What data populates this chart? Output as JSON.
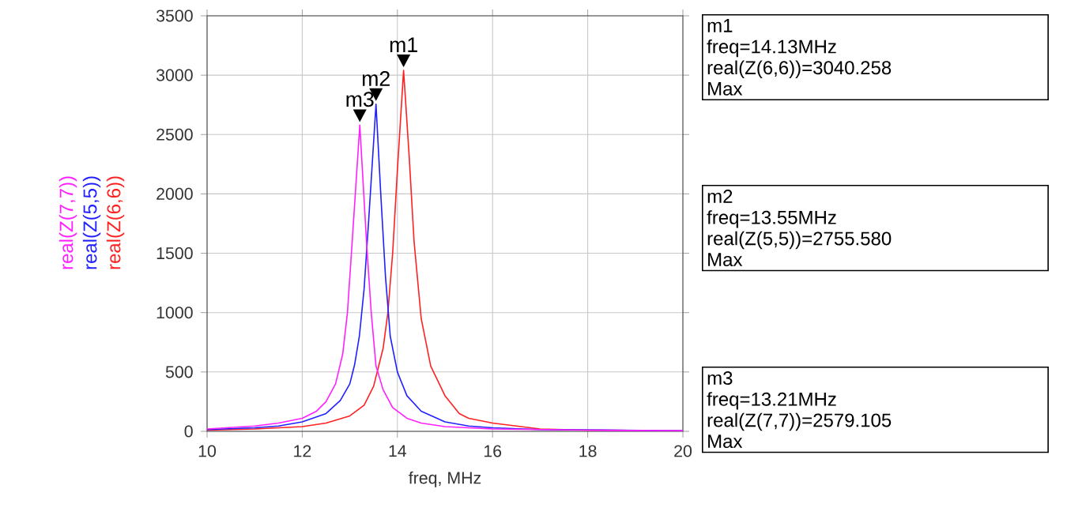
{
  "chart_data": {
    "type": "line",
    "xlabel": "freq, MHz",
    "xlim": [
      10,
      20
    ],
    "xticks": [
      10,
      12,
      14,
      16,
      18,
      20
    ],
    "ylim": [
      0,
      3500
    ],
    "yticks": [
      0,
      500,
      1000,
      1500,
      2000,
      2500,
      3000,
      3500
    ],
    "grid": true,
    "legend": "left",
    "marker": "none",
    "line_style": "solid",
    "series": [
      {
        "name": "real(Z(6,6))",
        "color": "#ff2020",
        "x": [
          10,
          11,
          12,
          12.5,
          13,
          13.3,
          13.5,
          13.7,
          13.8,
          13.9,
          14.0,
          14.13,
          14.25,
          14.35,
          14.5,
          14.7,
          15,
          15.3,
          15.5,
          16,
          17,
          18,
          20
        ],
        "values": [
          10,
          20,
          40,
          70,
          130,
          220,
          380,
          700,
          1000,
          1500,
          2200,
          3040.258,
          2300,
          1600,
          950,
          550,
          300,
          150,
          110,
          70,
          20,
          10,
          5
        ]
      },
      {
        "name": "real(Z(5,5))",
        "color": "#2020ff",
        "x": [
          10,
          11,
          11.5,
          12,
          12.5,
          12.8,
          13,
          13.1,
          13.2,
          13.3,
          13.4,
          13.55,
          13.65,
          13.75,
          13.85,
          14,
          14.2,
          14.5,
          15,
          15.5,
          16,
          17,
          20
        ],
        "values": [
          15,
          30,
          45,
          80,
          150,
          260,
          400,
          560,
          800,
          1200,
          1800,
          2755.58,
          2000,
          1300,
          800,
          500,
          300,
          170,
          80,
          45,
          30,
          15,
          5
        ]
      },
      {
        "name": "real(Z(7,7))",
        "color": "#ff20ff",
        "x": [
          10,
          11,
          11.5,
          12,
          12.3,
          12.5,
          12.7,
          12.85,
          12.95,
          13.05,
          13.21,
          13.35,
          13.45,
          13.55,
          13.7,
          13.9,
          14.2,
          14.5,
          15,
          16,
          18,
          20
        ],
        "values": [
          20,
          45,
          70,
          110,
          170,
          250,
          400,
          650,
          1000,
          1600,
          2579.105,
          1600,
          1000,
          550,
          350,
          200,
          110,
          70,
          40,
          20,
          10,
          5
        ]
      }
    ],
    "annotations": [
      {
        "text": "m1",
        "x": 14.13,
        "y": 3040.258
      },
      {
        "text": "m2",
        "x": 13.55,
        "y": 2755.58
      },
      {
        "text": "m3",
        "x": 13.21,
        "y": 2579.105
      },
      "m1",
      "freq=14.13MHz",
      "real(Z(6,6))=3040.258",
      "Max",
      "m2",
      "freq=13.55MHz",
      "real(Z(5,5))=2755.580",
      "Max",
      "m3",
      "freq=13.21MHz",
      "real(Z(7,7))=2579.105",
      "Max"
    ]
  }
}
